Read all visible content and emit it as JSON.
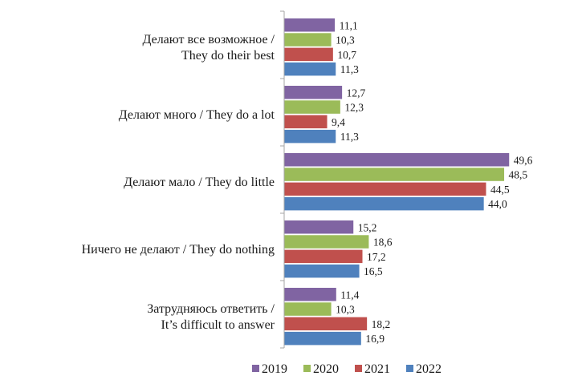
{
  "chart_data": {
    "type": "bar",
    "orientation": "horizontal",
    "categories": [
      [
        "Делают все возможное /",
        "They do their best"
      ],
      [
        "Делают много / They do a lot"
      ],
      [
        "Делают мало / They do little"
      ],
      [
        "Ничего не делают / They do nothing"
      ],
      [
        "Затрудняюсь ответить /",
        "It’s difficult to answer"
      ]
    ],
    "series": [
      {
        "name": "2019",
        "color": "#8064a2",
        "values": [
          11.1,
          12.7,
          49.6,
          15.2,
          11.4
        ],
        "labels": [
          "11,1",
          "12,7",
          "49,6",
          "15,2",
          "11,4"
        ]
      },
      {
        "name": "2020",
        "color": "#9bbb59",
        "values": [
          10.3,
          12.3,
          48.5,
          18.6,
          10.3
        ],
        "labels": [
          "10,3",
          "12,3",
          "48,5",
          "18,6",
          "10,3"
        ]
      },
      {
        "name": "2021",
        "color": "#c0504d",
        "values": [
          10.7,
          9.4,
          44.5,
          17.2,
          18.2
        ],
        "labels": [
          "10,7",
          "9,4",
          "44,5",
          "17,2",
          "18,2"
        ]
      },
      {
        "name": "2022",
        "color": "#4f81bd",
        "values": [
          11.3,
          11.3,
          44.0,
          16.5,
          16.9
        ],
        "labels": [
          "11,3",
          "11,3",
          "44,0",
          "16,5",
          "16,9"
        ]
      }
    ],
    "xlim": [
      0,
      52
    ],
    "grid": false,
    "legend_position": "bottom",
    "axis_color": "#a6a6a6",
    "title": "",
    "xlabel": "",
    "ylabel": ""
  }
}
